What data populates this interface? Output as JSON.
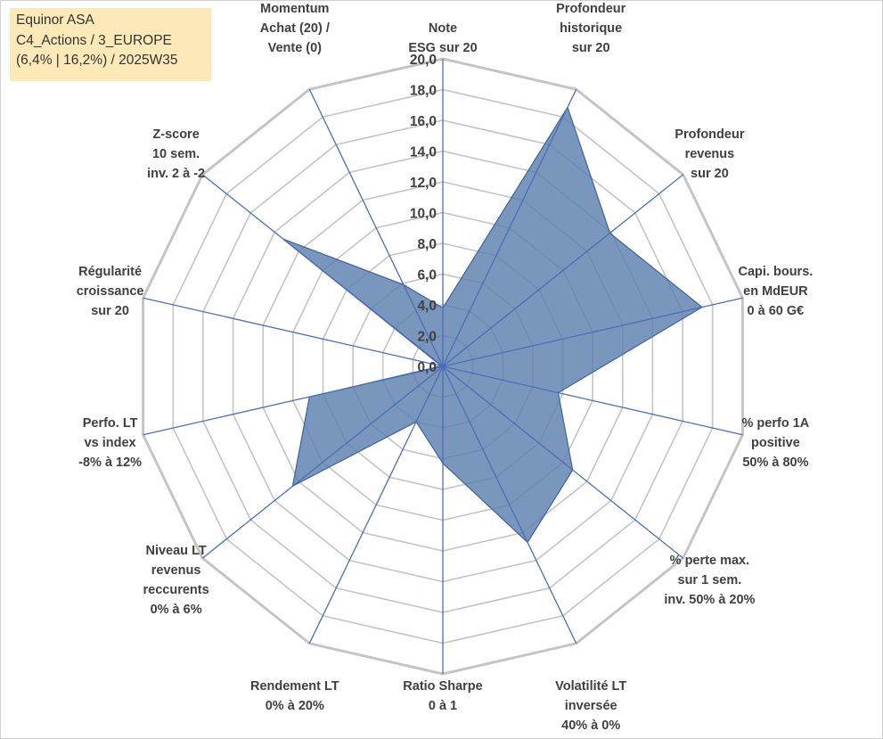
{
  "info": {
    "line1": "Equinor ASA",
    "line2": "C4_Actions / 3_EUROPE",
    "line3": "(6,4% | 16,2%) / 2025W35"
  },
  "chart_data": {
    "type": "radar",
    "rmin": 0,
    "rmax": 20,
    "tick_step": 2,
    "tick_labels": [
      "0,0",
      "2,0",
      "4,0",
      "6,0",
      "8,0",
      "10,0",
      "12,0",
      "14,0",
      "16,0",
      "18,0",
      "20,0"
    ],
    "axes": [
      [
        "Note",
        "ESG sur 20"
      ],
      [
        "Profondeur",
        "historique",
        "sur 20"
      ],
      [
        "Profondeur",
        "revenus",
        "sur 20"
      ],
      [
        "Capi. bours.",
        "en MdEUR",
        "0 à 60 G€"
      ],
      [
        "% perfo 1A",
        "positive",
        "50% à 80%"
      ],
      [
        "% perte max.",
        "sur 1 sem.",
        "inv. 50% à 20%"
      ],
      [
        "Volatilité LT",
        "inversée",
        "40% à 0%"
      ],
      [
        "Ratio Sharpe",
        "0 à 1"
      ],
      [
        "Rendement LT",
        "0% à 20%"
      ],
      [
        "Niveau LT",
        "revenus",
        "reccurents",
        "0% à 6%"
      ],
      [
        "Perfo. LT",
        "vs index",
        "-8% à 12%"
      ],
      [
        "Régularité",
        "croissance",
        "sur 20"
      ],
      [
        "Z-score",
        "10 sem.",
        "inv. 2 à -2"
      ],
      [
        "Momentum",
        "Achat (20) /",
        "Vente (0)"
      ]
    ],
    "series": [
      {
        "values": [
          3.8,
          18.7,
          13.9,
          17.3,
          7.7,
          10.8,
          12.7,
          6.3,
          4.0,
          12.5,
          8.9,
          0.1,
          13.3,
          5.9
        ]
      }
    ],
    "grid": true,
    "legend": "none",
    "colors": {
      "fill": "#5b7fad",
      "stroke": "#3f62a0",
      "ring": "#c4c4c4",
      "spoke": "#4a6fb5"
    }
  }
}
